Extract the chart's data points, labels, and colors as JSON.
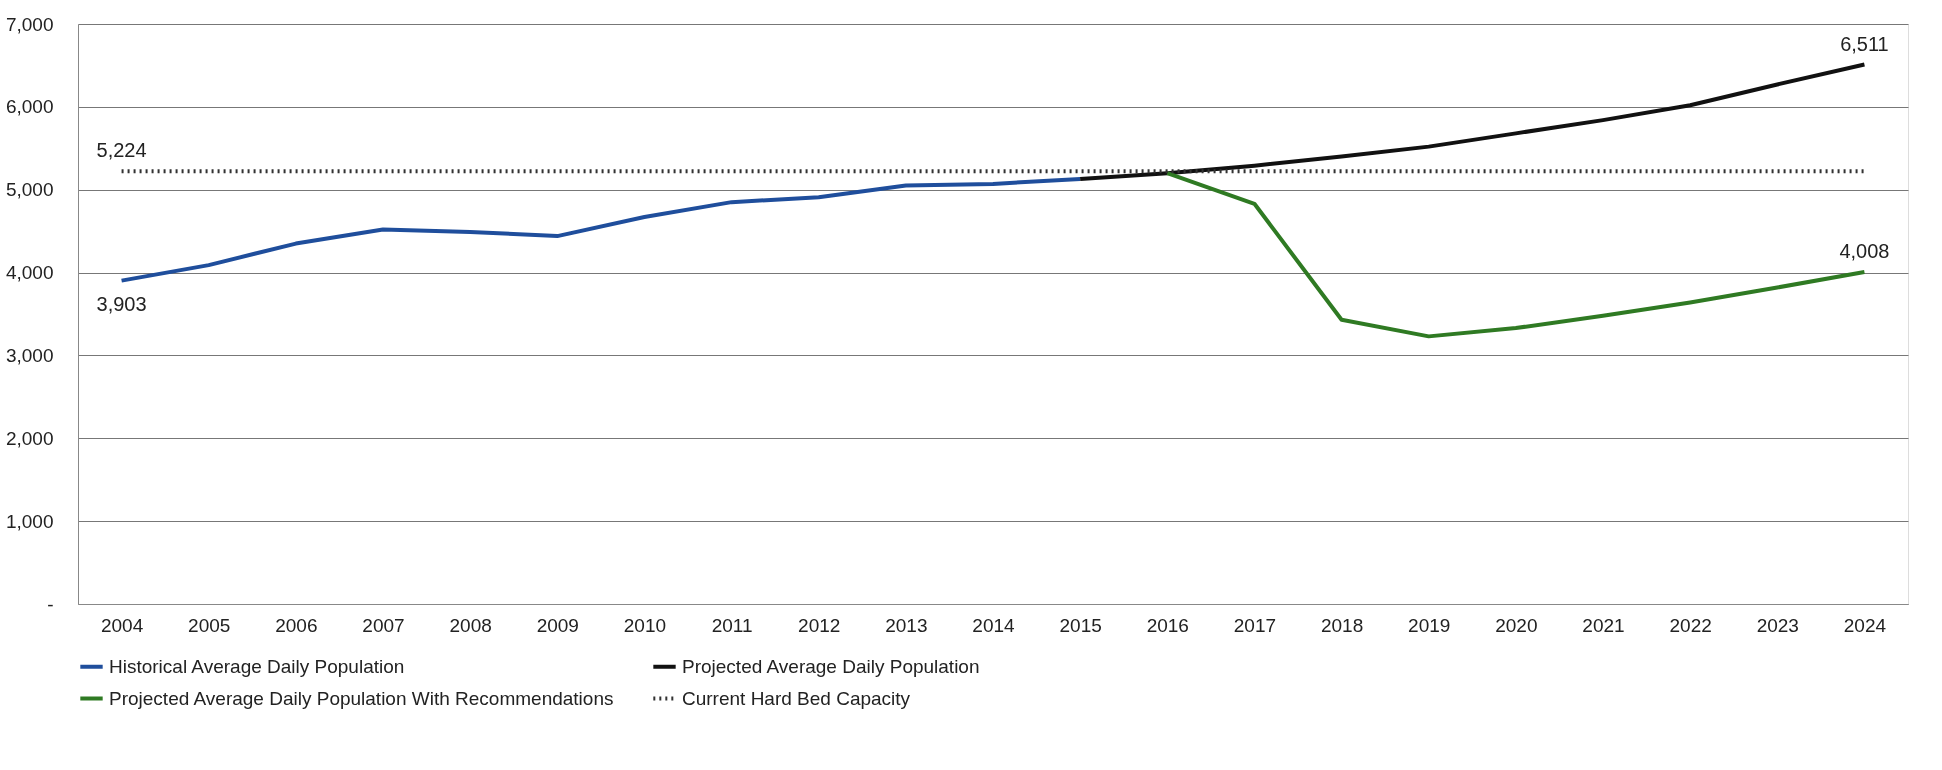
{
  "chart_data": {
    "type": "line",
    "categories": [
      "2004",
      "2005",
      "2006",
      "2007",
      "2008",
      "2009",
      "2010",
      "2011",
      "2012",
      "2013",
      "2014",
      "2015",
      "2016",
      "2017",
      "2018",
      "2019",
      "2020",
      "2021",
      "2022",
      "2023",
      "2024"
    ],
    "series": [
      {
        "name": "Historical Average Daily Population",
        "color": "#1f4e9c",
        "line_style": "solid",
        "values": [
          3903,
          4090,
          4350,
          4520,
          4490,
          4440,
          4670,
          4850,
          4910,
          5050,
          5070,
          5130,
          null,
          null,
          null,
          null,
          null,
          null,
          null,
          null,
          null
        ],
        "value_labels": [
          "3,903",
          null,
          null,
          null,
          null,
          null,
          null,
          null,
          null,
          null,
          null,
          null,
          null,
          null,
          null,
          null,
          null,
          null,
          null,
          null,
          null
        ]
      },
      {
        "name": "Projected Average Daily Population",
        "color": "#111111",
        "line_style": "solid",
        "values": [
          null,
          null,
          null,
          null,
          null,
          null,
          null,
          null,
          null,
          null,
          null,
          5130,
          5200,
          5290,
          5400,
          5520,
          5680,
          5840,
          6020,
          6270,
          6511
        ],
        "value_labels": [
          null,
          null,
          null,
          null,
          null,
          null,
          null,
          null,
          null,
          null,
          null,
          null,
          null,
          null,
          null,
          null,
          null,
          null,
          null,
          null,
          "6,511"
        ]
      },
      {
        "name": "Projected Average Daily Population With Recommendations",
        "color": "#2f7a23",
        "line_style": "solid",
        "values": [
          null,
          null,
          null,
          null,
          null,
          null,
          null,
          null,
          null,
          null,
          null,
          null,
          5200,
          4830,
          3430,
          3230,
          3330,
          3480,
          3640,
          3820,
          4008
        ],
        "value_labels": [
          null,
          null,
          null,
          null,
          null,
          null,
          null,
          null,
          null,
          null,
          null,
          null,
          null,
          null,
          null,
          null,
          null,
          null,
          null,
          null,
          "4,008"
        ]
      },
      {
        "name": "Current Hard Bed Capacity",
        "color": "#333333",
        "line_style": "dotted",
        "values": [
          5224,
          5224,
          5224,
          5224,
          5224,
          5224,
          5224,
          5224,
          5224,
          5224,
          5224,
          5224,
          5224,
          5224,
          5224,
          5224,
          5224,
          5224,
          5224,
          5224,
          5224
        ],
        "value_labels": [
          "5,224",
          null,
          null,
          null,
          null,
          null,
          null,
          null,
          null,
          null,
          null,
          null,
          null,
          null,
          null,
          null,
          null,
          null,
          null,
          null,
          null
        ]
      }
    ],
    "ylim": [
      0,
      7000
    ],
    "yticks": [
      {
        "value": 0,
        "label": "-"
      },
      {
        "value": 1000,
        "label": "1,000"
      },
      {
        "value": 2000,
        "label": "2,000"
      },
      {
        "value": 3000,
        "label": "3,000"
      },
      {
        "value": 4000,
        "label": "4,000"
      },
      {
        "value": 5000,
        "label": "5,000"
      },
      {
        "value": 6000,
        "label": "6,000"
      },
      {
        "value": 7000,
        "label": "7,000"
      }
    ],
    "grid": "y",
    "legend": "bottom",
    "marker": "none"
  }
}
